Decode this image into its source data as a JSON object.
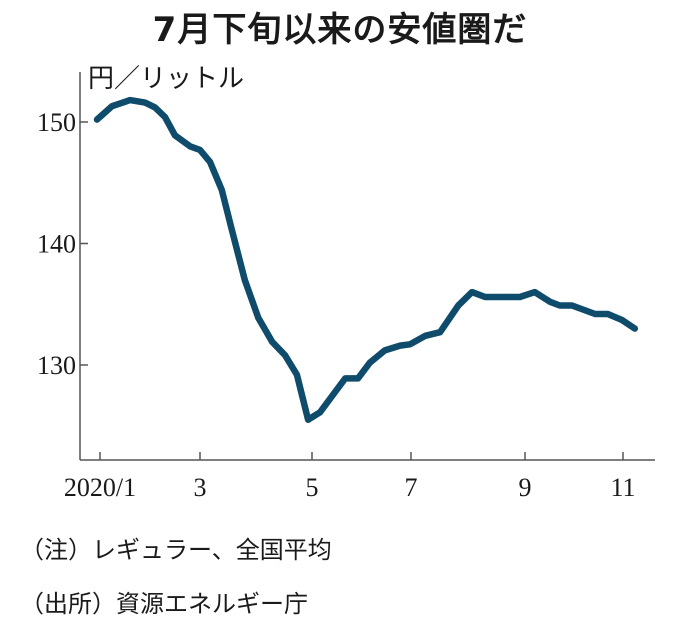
{
  "chart_data": {
    "type": "line",
    "title": "7月下旬以来の安値圏だ",
    "ylabel": "円／リットル",
    "xlabel": "",
    "ylim": [
      123.5,
      153
    ],
    "xlim": [
      0.9,
      11.6
    ],
    "yticks": [
      130,
      140,
      150
    ],
    "ytick_labels": [
      "130",
      "140",
      "150"
    ],
    "xticks": [
      1,
      3,
      5,
      7,
      9,
      11
    ],
    "xtick_labels": [
      "2020/1",
      "3",
      "5",
      "7",
      "9",
      "11"
    ],
    "grid": false,
    "line_color": "#0f4c6b",
    "series": [
      {
        "x": [
          0.94,
          1.24,
          1.6,
          1.9,
          2.1,
          2.3,
          2.5,
          2.8,
          3.0,
          3.18,
          3.39,
          3.57,
          3.8,
          4.04,
          4.29,
          4.52,
          4.73,
          4.93,
          5.16,
          5.67,
          5.93,
          6.17,
          6.47,
          6.78,
          6.98,
          7.25,
          7.51,
          7.83,
          8.07,
          8.3,
          8.91,
          9.2,
          9.51,
          9.71,
          9.96,
          10.43,
          10.69,
          10.98,
          11.24
        ],
        "values": [
          150.2,
          151.3,
          151.8,
          151.6,
          151.2,
          150.4,
          148.9,
          148.0,
          147.7,
          146.7,
          144.4,
          141.1,
          137.0,
          133.9,
          131.9,
          130.8,
          129.2,
          125.5,
          126.1,
          128.9,
          128.9,
          130.2,
          131.2,
          131.6,
          131.7,
          132.4,
          132.7,
          134.9,
          136.0,
          135.6,
          135.6,
          136.0,
          135.2,
          134.9,
          134.9,
          134.2,
          134.2,
          133.7,
          133.0
        ]
      }
    ]
  },
  "notes": {
    "note1": "（注）レギュラー、全国平均",
    "source": "（出所）資源エネルギー庁"
  }
}
